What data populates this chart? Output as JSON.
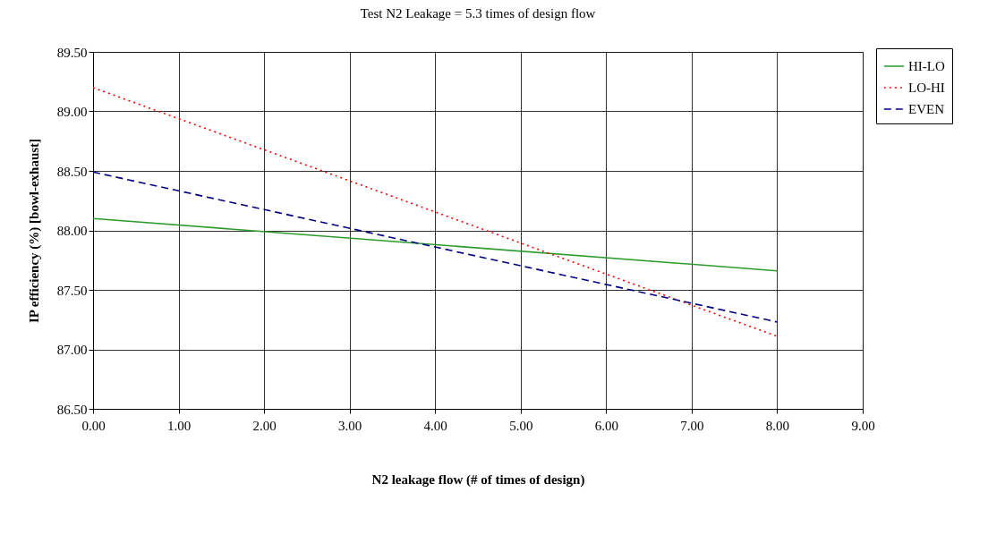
{
  "chart_data": {
    "type": "line",
    "title": "Test N2 Leakage   =        5.3 times of design flow",
    "xlabel": "N2 leakage flow (# of times of design)",
    "ylabel": "IP efficiency (%) [bowl-exhaust]",
    "x": [
      0,
      8
    ],
    "series": [
      {
        "name": "HI-LO",
        "color": "#2e9a2e",
        "line_style": "solid",
        "values": [
          88.1,
          87.66
        ]
      },
      {
        "name": "LO-HI",
        "color": "#ff0000",
        "line_style": "dotted",
        "values": [
          89.2,
          87.11
        ]
      },
      {
        "name": "EVEN",
        "color": "#000080",
        "line_style": "dashed",
        "values": [
          88.49,
          87.23
        ]
      }
    ],
    "xlim": [
      0,
      9
    ],
    "xticks": [
      {
        "value": 0,
        "label": "0.00"
      },
      {
        "value": 1,
        "label": "1.00"
      },
      {
        "value": 2,
        "label": "2.00"
      },
      {
        "value": 3,
        "label": "3.00"
      },
      {
        "value": 4,
        "label": "4.00"
      },
      {
        "value": 5,
        "label": "5.00"
      },
      {
        "value": 6,
        "label": "6.00"
      },
      {
        "value": 7,
        "label": "7.00"
      },
      {
        "value": 8,
        "label": "8.00"
      },
      {
        "value": 9,
        "label": "9.00"
      }
    ],
    "ylim": [
      86.5,
      89.5
    ],
    "yticks": [
      {
        "value": 86.5,
        "label": "86.50"
      },
      {
        "value": 87,
        "label": "87.00"
      },
      {
        "value": 87.5,
        "label": "87.50"
      },
      {
        "value": 88,
        "label": "88.00"
      },
      {
        "value": 88.5,
        "label": "88.50"
      },
      {
        "value": 89,
        "label": "89.00"
      },
      {
        "value": 89.5,
        "label": "89.50"
      }
    ],
    "grid": true,
    "legend": "top right",
    "marker": "none"
  }
}
